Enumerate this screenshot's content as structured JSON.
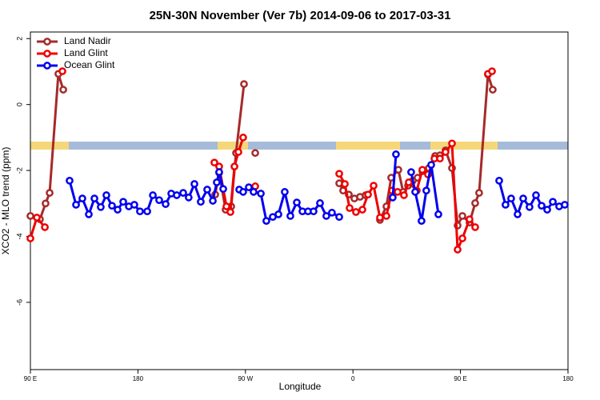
{
  "chart_data": {
    "type": "line",
    "title": "25N-30N November (Ver 7b)   2014-09-06 to 2017-03-31",
    "xlabel": "Longitude",
    "ylabel": "XCO2 - MLO trend (ppm)",
    "xlim": [
      90,
      540
    ],
    "ylim": [
      -8.04,
      2.2
    ],
    "xticks": [
      {
        "value": 90,
        "label": "90 E"
      },
      180,
      {
        "value": 270,
        "label": "90 W"
      },
      {
        "value": 360,
        "label": "0"
      },
      {
        "value": 450,
        "label": "90 E"
      },
      {
        "value": 540,
        "label": "180"
      }
    ],
    "yticks": [
      -6,
      -4,
      -2,
      0,
      2
    ],
    "legend": "upper left",
    "series": [
      {
        "name": "Land Nadir",
        "color": "#a52a2a",
        "x": [
          90,
          98,
          102.7,
          106.1,
          113.4,
          117.5,
          null,
          244.7,
          248,
          253.4,
          258.1,
          262.1,
          268.8,
          null,
          278.2,
          null,
          348.5,
          351.8,
          356.5,
          361.2,
          365.9,
          370.6,
          null,
          382.6,
          388,
          392,
          398,
          402,
          406.1,
          410.1,
          414.1,
          418.1,
          423.5,
          428.8,
          432.8,
          437.5,
          442.9,
          447.6,
          451.6,
          457.6,
          462.3,
          465.6,
          473,
          477
        ],
        "values": [
          -3.38,
          -3.48,
          -3,
          -2.68,
          0.93,
          0.45,
          null,
          -2.73,
          -2.07,
          -3.19,
          -3.09,
          -1.47,
          0.62,
          null,
          -1.47,
          null,
          -2.39,
          -2.61,
          -2.73,
          -2.85,
          -2.8,
          -2.75,
          null,
          -3.5,
          -3.09,
          -2.22,
          -1.98,
          -2.65,
          -2.46,
          -2.31,
          -2.22,
          -2.02,
          -1.93,
          -1.56,
          -1.54,
          -1.39,
          -1.93,
          -3.67,
          -3.38,
          -3.58,
          -2.99,
          -2.68,
          0.91,
          0.45
        ]
      },
      {
        "name": "Land Glint",
        "color": "#ee0000",
        "x": [
          90,
          95.4,
          102.1,
          null,
          116.8,
          null,
          244,
          248,
          254.1,
          257.4,
          260.8,
          264.1,
          268.1,
          null,
          278.2,
          null,
          348.5,
          353.2,
          357.2,
          362.5,
          367.9,
          372.6,
          377.3,
          382.6,
          388,
          392.7,
          397.4,
          402.7,
          406.7,
          413.4,
          418.1,
          422.8,
          428.2,
          432.8,
          437.5,
          442.9,
          447.6,
          451.6,
          457.6,
          462.3,
          null,
          473,
          476.4
        ],
        "values": [
          -4.06,
          -3.43,
          -3.72,
          null,
          1.01,
          null,
          -1.76,
          -1.88,
          -3.09,
          -3.26,
          -1.88,
          -1.44,
          -1,
          null,
          -2.48,
          null,
          -2.1,
          -2.41,
          -3.14,
          -3.26,
          -3.19,
          -2.73,
          -2.46,
          -3.43,
          -3.38,
          -2.61,
          -2.65,
          -2.75,
          -2.36,
          -2.61,
          -1.98,
          -2.12,
          -1.64,
          -1.64,
          -1.44,
          -1.18,
          -4.4,
          -4.06,
          -3.48,
          -3.72,
          null,
          0.93,
          1.01
        ]
      },
      {
        "name": "Ocean Glint",
        "color": "#0000ee",
        "x": [
          122.8,
          128.2,
          133.5,
          138.9,
          143.6,
          148.9,
          153.6,
          158.3,
          163,
          167.7,
          172.4,
          177,
          181.7,
          187.8,
          192.5,
          197.8,
          203.2,
          207.9,
          212.5,
          217.9,
          222.5,
          227.3,
          232.6,
          238,
          242.7,
          246,
          248,
          251.4,
          null,
          264.8,
          268.1,
          272.8,
          276.8,
          282.9,
          287.5,
          292.9,
          297.6,
          302.9,
          307.6,
          313,
          317.7,
          322.4,
          327,
          332.4,
          337.7,
          342.4,
          348.5,
          null,
          393.3,
          396,
          null,
          408.7,
          412.1,
          417.4,
          421.4,
          425.5,
          431.5,
          null,
          482.4,
          487.7,
          492.4,
          497.8,
          502.5,
          507.8,
          513.2,
          517.9,
          522.6,
          527.3,
          532.6,
          537.3
        ],
        "values": [
          -2.31,
          -3.04,
          -2.85,
          -3.33,
          -2.85,
          -3.11,
          -2.75,
          -3.07,
          -3.19,
          -2.95,
          -3.09,
          -3.04,
          -3.24,
          -3.24,
          -2.75,
          -2.9,
          -3.02,
          -2.7,
          -2.75,
          -2.68,
          -2.82,
          -2.41,
          -2.95,
          -2.58,
          -2.92,
          -2.36,
          -2.05,
          -2.56,
          null,
          -2.58,
          -2.65,
          -2.51,
          -2.65,
          -2.7,
          -3.53,
          -3.41,
          -3.33,
          -2.65,
          -3.38,
          -2.97,
          -3.24,
          -3.24,
          -3.24,
          -2.99,
          -3.38,
          -3.28,
          -3.41,
          null,
          -2.82,
          -1.51,
          null,
          -2.05,
          -2.65,
          -3.53,
          -2.61,
          -1.83,
          -3.33,
          null,
          -2.31,
          -3.04,
          -2.85,
          -3.33,
          -2.85,
          -3.11,
          -2.75,
          -3.07,
          -3.19,
          -2.95,
          -3.09,
          -3.04
        ]
      }
    ]
  }
}
